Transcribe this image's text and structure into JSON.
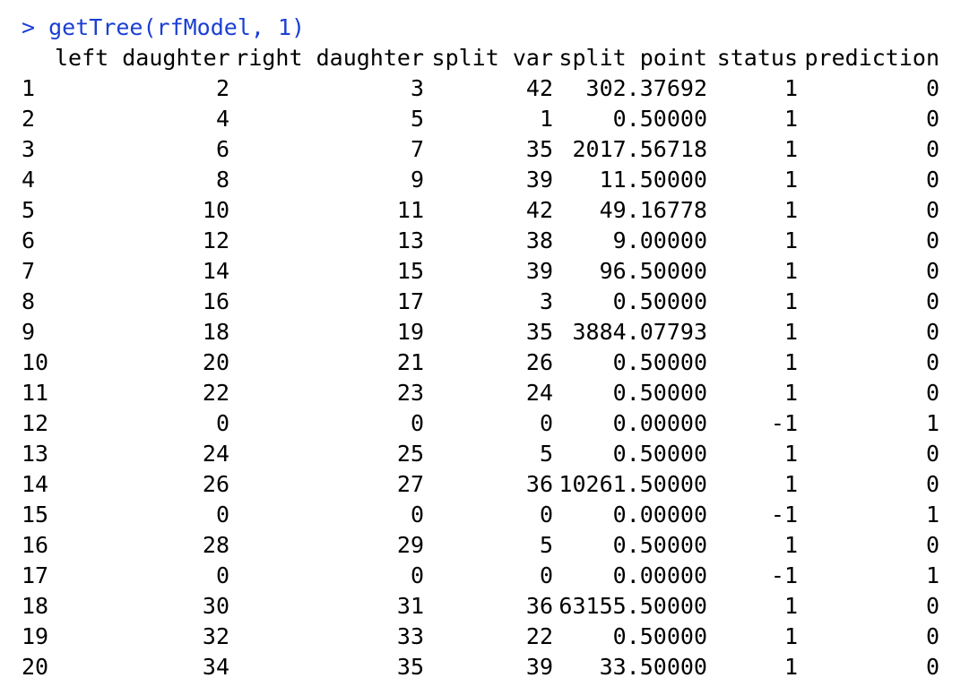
{
  "console": {
    "prompt": "> ",
    "command": "getTree(rfModel, 1)",
    "command_color": "#1a3fd4"
  },
  "table": {
    "headers": {
      "row": "",
      "left_daughter": "left daughter",
      "right_daughter": "right daughter",
      "split_var": "split var",
      "split_point": "split point",
      "status": "status",
      "prediction": "prediction"
    },
    "rows": [
      {
        "row": "1",
        "left_daughter": "2",
        "right_daughter": "3",
        "split_var": "42",
        "split_point": "302.37692",
        "status": "1",
        "prediction": "0"
      },
      {
        "row": "2",
        "left_daughter": "4",
        "right_daughter": "5",
        "split_var": "1",
        "split_point": "0.50000",
        "status": "1",
        "prediction": "0"
      },
      {
        "row": "3",
        "left_daughter": "6",
        "right_daughter": "7",
        "split_var": "35",
        "split_point": "2017.56718",
        "status": "1",
        "prediction": "0"
      },
      {
        "row": "4",
        "left_daughter": "8",
        "right_daughter": "9",
        "split_var": "39",
        "split_point": "11.50000",
        "status": "1",
        "prediction": "0"
      },
      {
        "row": "5",
        "left_daughter": "10",
        "right_daughter": "11",
        "split_var": "42",
        "split_point": "49.16778",
        "status": "1",
        "prediction": "0"
      },
      {
        "row": "6",
        "left_daughter": "12",
        "right_daughter": "13",
        "split_var": "38",
        "split_point": "9.00000",
        "status": "1",
        "prediction": "0"
      },
      {
        "row": "7",
        "left_daughter": "14",
        "right_daughter": "15",
        "split_var": "39",
        "split_point": "96.50000",
        "status": "1",
        "prediction": "0"
      },
      {
        "row": "8",
        "left_daughter": "16",
        "right_daughter": "17",
        "split_var": "3",
        "split_point": "0.50000",
        "status": "1",
        "prediction": "0"
      },
      {
        "row": "9",
        "left_daughter": "18",
        "right_daughter": "19",
        "split_var": "35",
        "split_point": "3884.07793",
        "status": "1",
        "prediction": "0"
      },
      {
        "row": "10",
        "left_daughter": "20",
        "right_daughter": "21",
        "split_var": "26",
        "split_point": "0.50000",
        "status": "1",
        "prediction": "0"
      },
      {
        "row": "11",
        "left_daughter": "22",
        "right_daughter": "23",
        "split_var": "24",
        "split_point": "0.50000",
        "status": "1",
        "prediction": "0"
      },
      {
        "row": "12",
        "left_daughter": "0",
        "right_daughter": "0",
        "split_var": "0",
        "split_point": "0.00000",
        "status": "-1",
        "prediction": "1"
      },
      {
        "row": "13",
        "left_daughter": "24",
        "right_daughter": "25",
        "split_var": "5",
        "split_point": "0.50000",
        "status": "1",
        "prediction": "0"
      },
      {
        "row": "14",
        "left_daughter": "26",
        "right_daughter": "27",
        "split_var": "36",
        "split_point": "10261.50000",
        "status": "1",
        "prediction": "0"
      },
      {
        "row": "15",
        "left_daughter": "0",
        "right_daughter": "0",
        "split_var": "0",
        "split_point": "0.00000",
        "status": "-1",
        "prediction": "1"
      },
      {
        "row": "16",
        "left_daughter": "28",
        "right_daughter": "29",
        "split_var": "5",
        "split_point": "0.50000",
        "status": "1",
        "prediction": "0"
      },
      {
        "row": "17",
        "left_daughter": "0",
        "right_daughter": "0",
        "split_var": "0",
        "split_point": "0.00000",
        "status": "-1",
        "prediction": "1"
      },
      {
        "row": "18",
        "left_daughter": "30",
        "right_daughter": "31",
        "split_var": "36",
        "split_point": "63155.50000",
        "status": "1",
        "prediction": "0"
      },
      {
        "row": "19",
        "left_daughter": "32",
        "right_daughter": "33",
        "split_var": "22",
        "split_point": "0.50000",
        "status": "1",
        "prediction": "0"
      },
      {
        "row": "20",
        "left_daughter": "34",
        "right_daughter": "35",
        "split_var": "39",
        "split_point": "33.50000",
        "status": "1",
        "prediction": "0"
      }
    ]
  }
}
